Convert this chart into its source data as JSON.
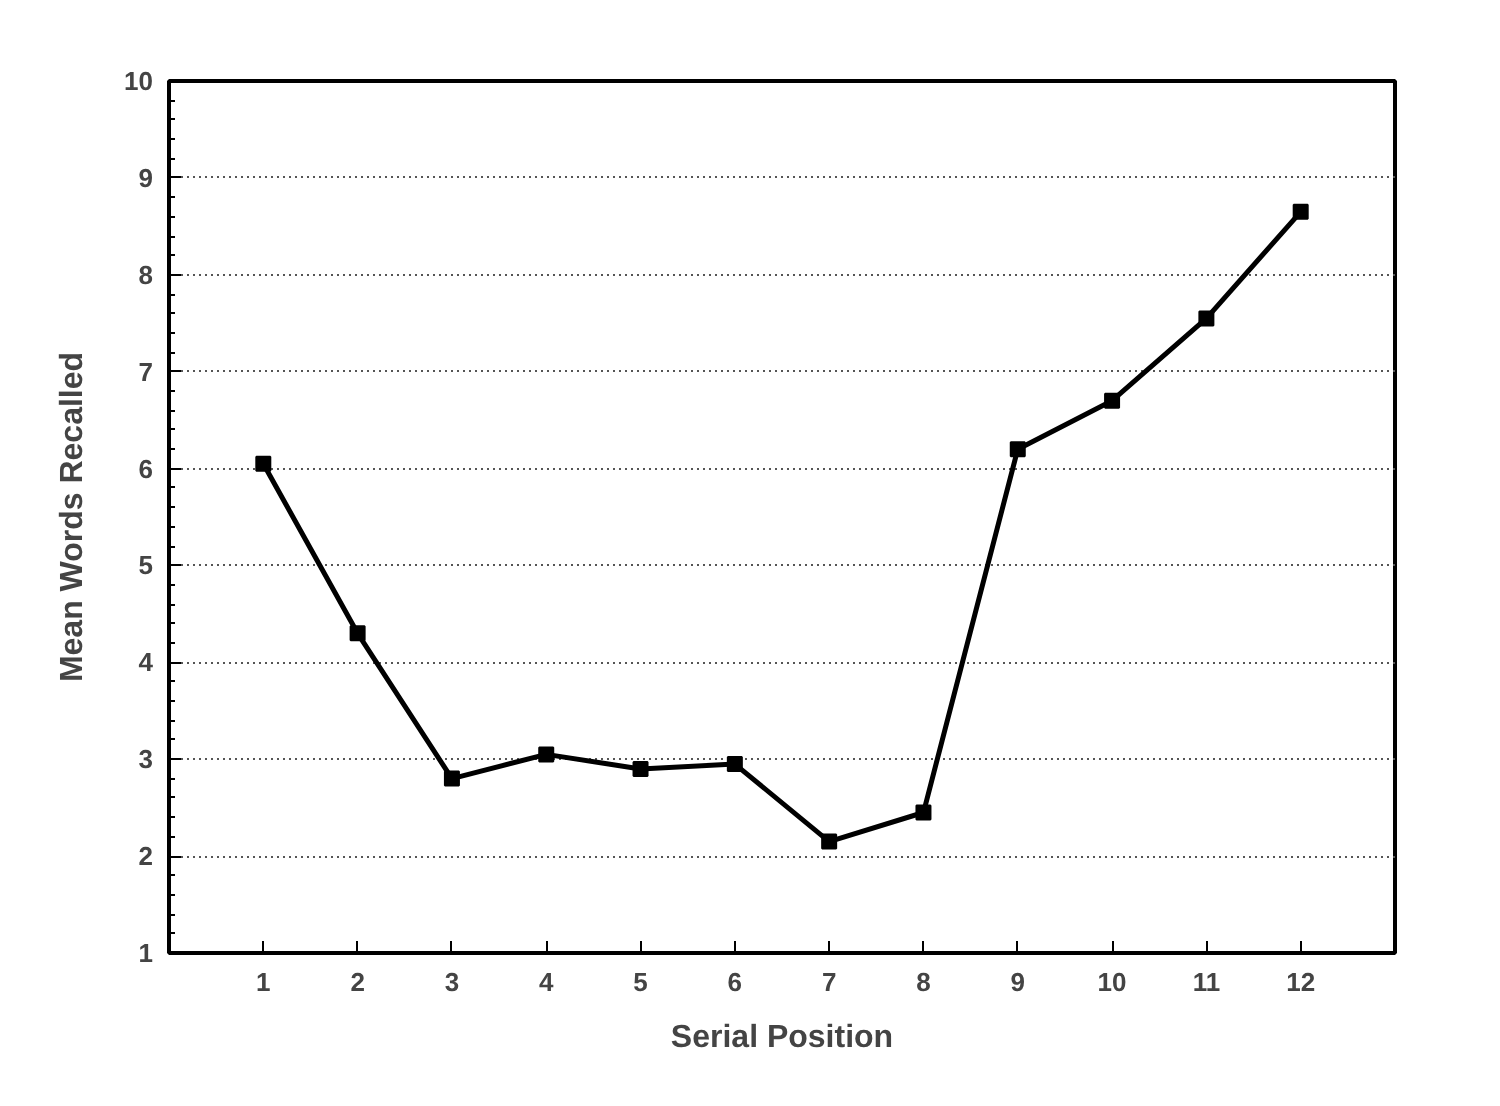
{
  "chart_data": {
    "type": "line",
    "xlabel": "Serial Position",
    "ylabel": "Mean Words Recalled",
    "x": [
      1,
      2,
      3,
      4,
      5,
      6,
      7,
      8,
      9,
      10,
      11,
      12
    ],
    "series": [
      {
        "color": "#000000",
        "values": [
          6.05,
          4.3,
          2.8,
          3.05,
          2.9,
          2.95,
          2.15,
          2.45,
          6.2,
          6.7,
          7.55,
          8.65
        ]
      }
    ],
    "xlim": [
      0,
      13
    ],
    "ylim": [
      1,
      10
    ],
    "xticks": [
      1,
      2,
      3,
      4,
      5,
      6,
      7,
      8,
      9,
      10,
      11,
      12
    ],
    "yticks": [
      1,
      2,
      3,
      4,
      5,
      6,
      7,
      8,
      9,
      10
    ],
    "grid": "y",
    "marker": "square",
    "line_style": "solid"
  }
}
